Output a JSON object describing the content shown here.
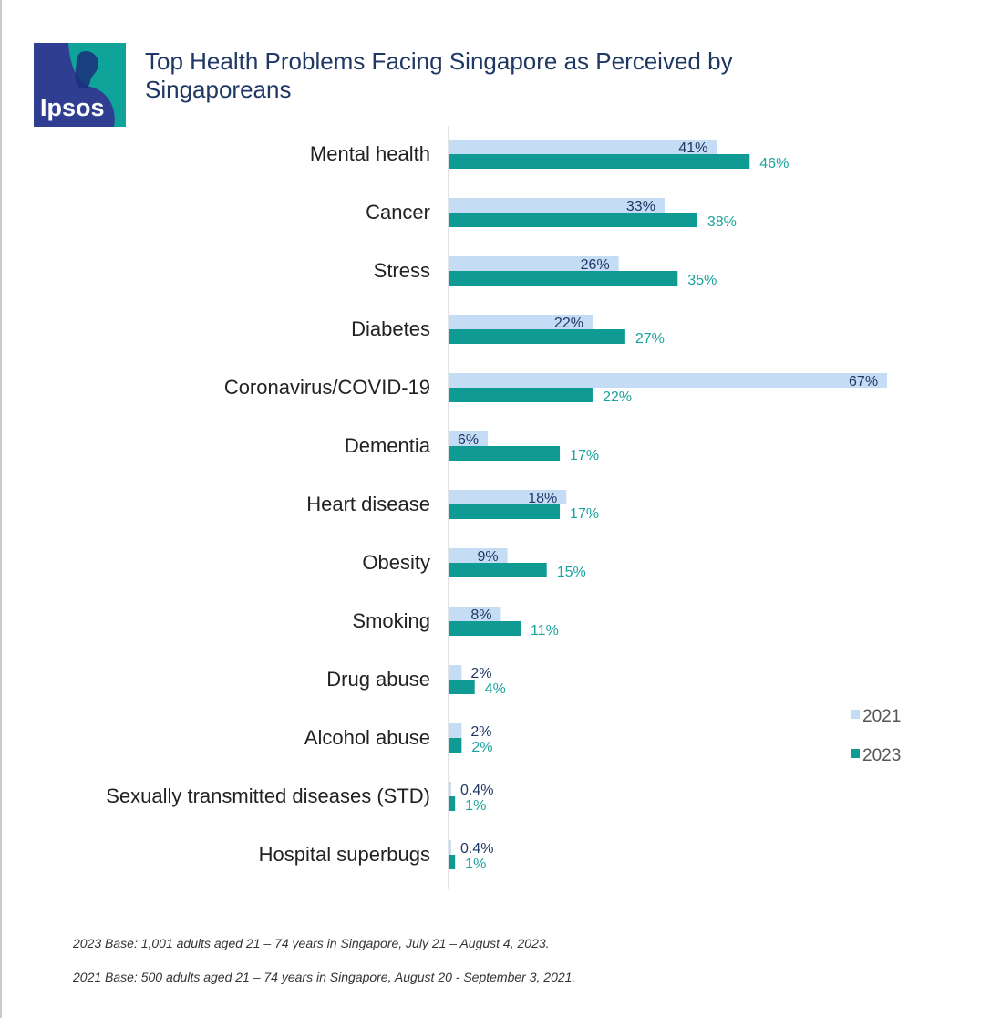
{
  "header": {
    "title": "Top Health Problems Facing Singapore as Perceived by Singaporeans",
    "logo_text": "Ipsos"
  },
  "colors": {
    "series_2021": "#c5dcf5",
    "series_2023": "#0f9a94",
    "label_2021": "#1f3864",
    "label_2023": "#1aa39c",
    "logo_bg_dark": "#2f3e91",
    "logo_bg_teal": "#0fa39a"
  },
  "chart_data": {
    "type": "bar",
    "orientation": "horizontal",
    "categories": [
      "Mental health",
      "Cancer",
      "Stress",
      "Diabetes",
      "Coronavirus/COVID-19",
      "Dementia",
      "Heart disease",
      "Obesity",
      "Smoking",
      "Drug abuse",
      "Alcohol abuse",
      "Sexually transmitted diseases (STD)",
      "Hospital superbugs"
    ],
    "series": [
      {
        "name": "2021",
        "values": [
          41,
          33,
          26,
          22,
          67,
          6,
          18,
          9,
          8,
          2,
          2,
          0.4,
          0.4
        ],
        "labels": [
          "41%",
          "33%",
          "26%",
          "22%",
          "67%",
          "6%",
          "18%",
          "9%",
          "8%",
          "2%",
          "2%",
          "0.4%",
          "0.4%"
        ]
      },
      {
        "name": "2023",
        "values": [
          46,
          38,
          35,
          27,
          22,
          17,
          17,
          15,
          11,
          4,
          2,
          1,
          1
        ],
        "labels": [
          "46%",
          "38%",
          "35%",
          "27%",
          "22%",
          "17%",
          "17%",
          "15%",
          "11%",
          "4%",
          "2%",
          "1%",
          "1%"
        ]
      }
    ],
    "xlim": [
      0,
      67
    ],
    "legend": "right",
    "grid": false
  },
  "footnotes": {
    "base_2023": "2023 Base: 1,001 adults aged 21 – 74 years in Singapore, July 21 – August 4, 2023.",
    "base_2021": "2021 Base: 500 adults aged 21 – 74 years in Singapore, August 20 - September 3, 2021."
  }
}
